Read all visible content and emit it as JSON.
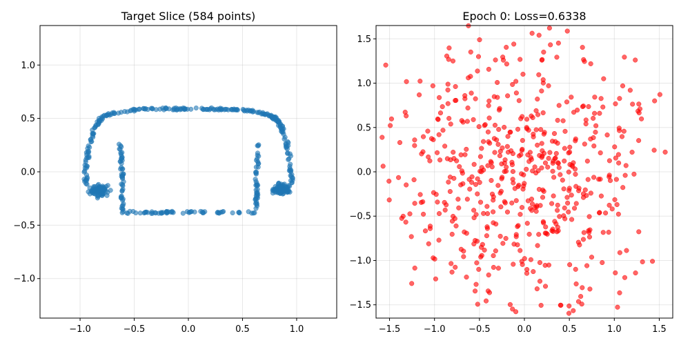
{
  "chart_data": [
    {
      "type": "scatter",
      "title": "Target Slice (584 points)",
      "xlabel": "",
      "ylabel": "",
      "xlim": [
        -1.37,
        1.37
      ],
      "ylim": [
        -1.37,
        1.37
      ],
      "xticks": [
        -1.0,
        -0.5,
        0.0,
        0.5,
        1.0
      ],
      "yticks": [
        -1.0,
        -0.5,
        0.0,
        0.5,
        1.0
      ],
      "xtick_labels": [
        "−1.0",
        "−0.5",
        "0.0",
        "0.5",
        "1.0"
      ],
      "ytick_labels": [
        "−1.0",
        "−0.5",
        "0.0",
        "0.5",
        "1.0"
      ],
      "grid": true,
      "point_color": "#1f77b4",
      "point_alpha": 0.6,
      "n_points": 584,
      "shape": {
        "top_arc": {
          "x_range": [
            -0.95,
            0.95
          ],
          "y_center": 0.52,
          "y_top": 0.59
        },
        "bottom_line": {
          "x_range": [
            -0.62,
            0.62
          ],
          "y": -0.38
        },
        "left_lobe": {
          "x": -0.82,
          "y": -0.17
        },
        "right_lobe": {
          "x": 0.86,
          "y": -0.16
        },
        "inner_left_x": -0.63,
        "inner_right_x": 0.65
      }
    },
    {
      "type": "scatter",
      "title": "Epoch 0: Loss=0.6338",
      "xlabel": "",
      "ylabel": "",
      "xlim": [
        -1.65,
        1.65
      ],
      "ylim": [
        -1.65,
        1.65
      ],
      "xticks": [
        -1.5,
        -1.0,
        -0.5,
        0.0,
        0.5,
        1.0,
        1.5
      ],
      "yticks": [
        -1.5,
        -1.0,
        -0.5,
        0.0,
        0.5,
        1.0,
        1.5
      ],
      "xtick_labels": [
        "−1.5",
        "−1.0",
        "−0.5",
        "0.0",
        "0.5",
        "1.0",
        "1.5"
      ],
      "ytick_labels": [
        "−1.5",
        "−1.0",
        "−0.5",
        "0.0",
        "0.5",
        "1.0",
        "1.5"
      ],
      "grid": true,
      "point_color": "#ff0000",
      "point_alpha": 0.6,
      "n_points": 584,
      "distribution": "gaussian",
      "sigma": 0.75
    }
  ]
}
